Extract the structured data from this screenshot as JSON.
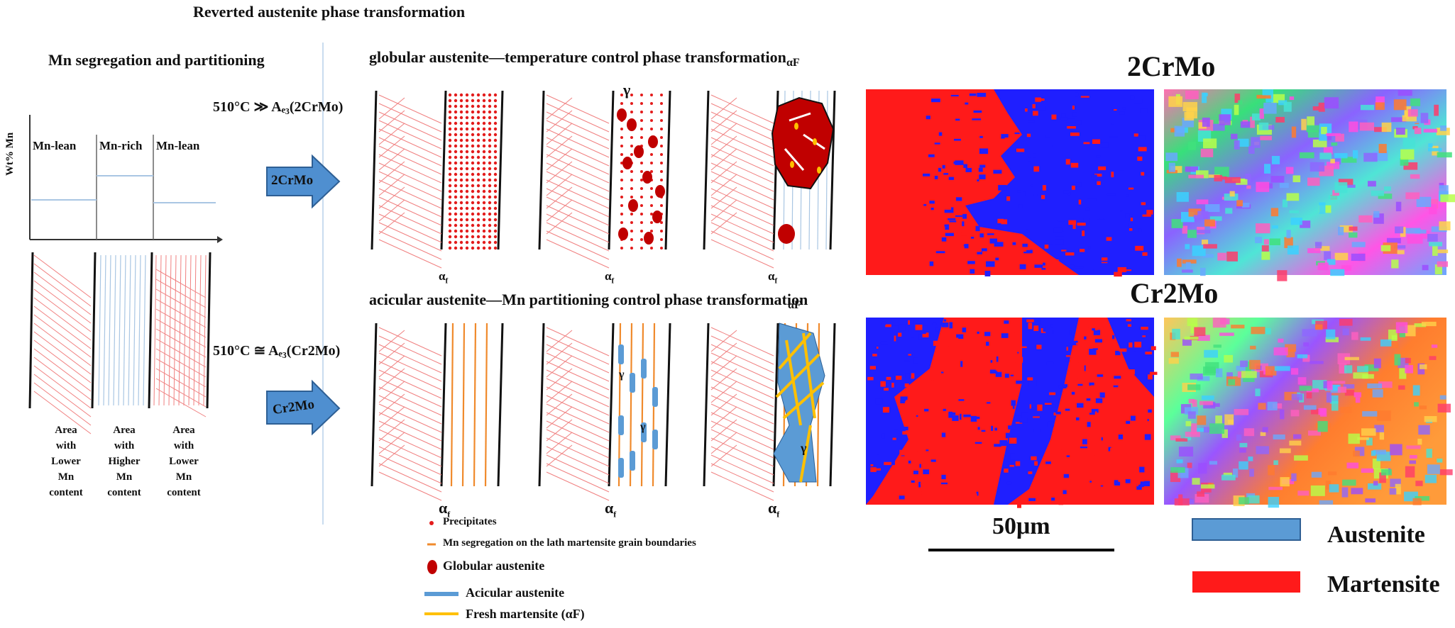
{
  "headings": {
    "main": "Reverted austenite phase transformation",
    "left": "Mn segregation and partitioning",
    "top_row": "globular austenite—temperature control phase transformation",
    "bottom_row": "acicular austenite—Mn partitioning control phase transformation"
  },
  "mn_profile": {
    "ylabel": "Wt% Mn",
    "regions": [
      "Mn-lean",
      "Mn-rich",
      "Mn-lean"
    ],
    "areas": [
      [
        "Area",
        "with",
        "Lower",
        "Mn",
        "content"
      ],
      [
        "Area",
        "with",
        "Higher",
        "Mn",
        "content"
      ],
      [
        "Area",
        "with",
        "Lower",
        "Mn",
        "content"
      ]
    ]
  },
  "conditions": {
    "top": "510°C ≫ Aₑ₃(2CrMo)",
    "bottom": "510°C ≅ Aₑ₃(Cr2Mo)"
  },
  "arrows": {
    "top": "2CrMo",
    "bottom": "Cr2Mo"
  },
  "panel_labels": {
    "gamma": "γ",
    "alpha_f": "αF",
    "alpha": "α",
    "sub": "f"
  },
  "legend": {
    "precipitates": "Precipitates",
    "mn_seg": "Mn segregation on the lath martensite grain boundaries",
    "globular": "Globular austenite",
    "acicular": "Acicular austenite",
    "fresh": "Fresh martensite (αF)"
  },
  "maps": {
    "top_title": "2CrMo",
    "bottom_title": "Cr2Mo",
    "scale": "50μm"
  },
  "phase_legend": {
    "austenite": "Austenite",
    "martensite": "Martensite"
  },
  "colors": {
    "austenite": "#5b9bd5",
    "martensite": "#ff1a1a",
    "map_blue": "#1f1fff",
    "precipitate": "#e31c1c",
    "globular": "#c00000",
    "fresh_martensite": "#ffc000",
    "mn_seg": "#f08a2c"
  }
}
